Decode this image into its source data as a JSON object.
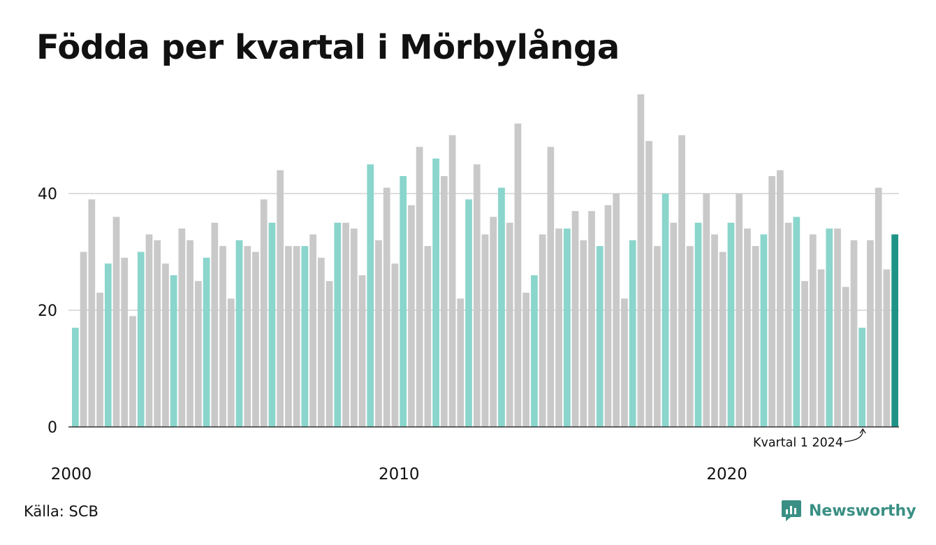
{
  "title": "Födda per kvartal i Mörbylånga",
  "source": "Källa: SCB",
  "brand": {
    "name": "Newsworthy",
    "icon": "newsworthy-logo-icon"
  },
  "colors": {
    "highlight_quarter": "#8ad5cc",
    "other_quarter": "#c9c9c9",
    "latest": "#1e9486",
    "grid": "#dddddd",
    "axis": "#333333",
    "brand": "#3a8f84"
  },
  "chart_data": {
    "type": "bar",
    "title": "Födda per kvartal i Mörbylånga",
    "xlabel": "",
    "ylabel": "",
    "ylim": [
      0,
      57
    ],
    "y_ticks": [
      0,
      20,
      40
    ],
    "x_tick_labels": [
      {
        "label": "2000",
        "index": 0
      },
      {
        "label": "2010",
        "index": 40
      },
      {
        "label": "2020",
        "index": 80
      }
    ],
    "grid": "horizontal",
    "start": {
      "year": 2000,
      "quarter": 1
    },
    "highlight_quarter": 1,
    "values": [
      17,
      30,
      39,
      23,
      28,
      36,
      29,
      19,
      30,
      33,
      32,
      28,
      26,
      34,
      32,
      25,
      29,
      35,
      31,
      22,
      32,
      31,
      30,
      39,
      35,
      44,
      31,
      31,
      31,
      33,
      29,
      25,
      35,
      35,
      34,
      26,
      45,
      32,
      41,
      28,
      43,
      38,
      48,
      31,
      46,
      43,
      50,
      22,
      39,
      45,
      33,
      36,
      41,
      35,
      52,
      23,
      26,
      33,
      48,
      34,
      34,
      37,
      32,
      37,
      31,
      38,
      40,
      22,
      32,
      57,
      49,
      31,
      40,
      35,
      50,
      31,
      35,
      40,
      33,
      30,
      35,
      40,
      34,
      31,
      33,
      43,
      44,
      35,
      36,
      25,
      33,
      27,
      34,
      34,
      24,
      32,
      17,
      32,
      41,
      27,
      33
    ],
    "annotation": {
      "text": "Kvartal 1 2024",
      "target_index": 96
    }
  }
}
